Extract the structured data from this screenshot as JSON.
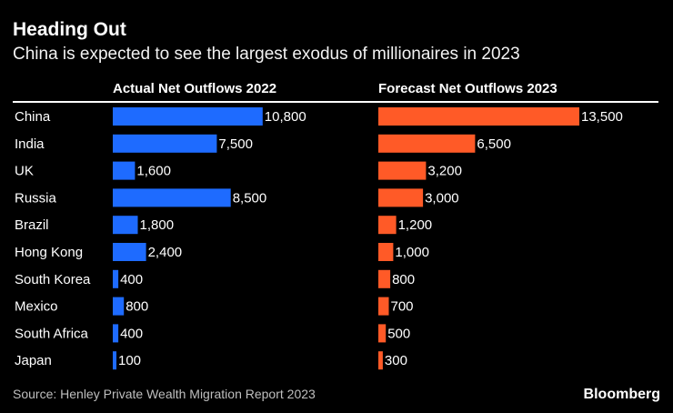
{
  "header": {
    "title": "Heading Out",
    "subtitle": "China is expected to see the largest exodus of millionaires in 2023"
  },
  "footer": {
    "source": "Source: Henley Private Wealth Migration Report 2023",
    "brand": "Bloomberg"
  },
  "colors": {
    "background": "#000000",
    "actual": "#1e6bff",
    "forecast": "#ff5a27",
    "text": "#ffffff"
  },
  "chart_data": {
    "type": "bar",
    "orientation": "horizontal",
    "title": "Heading Out",
    "subtitle": "China is expected to see the largest exodus of millionaires in 2023",
    "categories": [
      "China",
      "India",
      "UK",
      "Russia",
      "Brazil",
      "Hong Kong",
      "South Korea",
      "Mexico",
      "South Africa",
      "Japan"
    ],
    "series": [
      {
        "name": "Actual Net Outflows 2022",
        "values": [
          10800,
          7500,
          1600,
          8500,
          1800,
          2400,
          400,
          800,
          400,
          100
        ],
        "labels": [
          "10,800",
          "7,500",
          "1,600",
          "8,500",
          "1,800",
          "2,400",
          "400",
          "800",
          "400",
          "100"
        ]
      },
      {
        "name": "Forecast Net Outflows 2023",
        "values": [
          13500,
          6500,
          3200,
          3000,
          1200,
          1000,
          800,
          700,
          500,
          300
        ],
        "labels": [
          "13,500",
          "6,500",
          "3,200",
          "3,000",
          "1,200",
          "1,000",
          "800",
          "700",
          "500",
          "300"
        ]
      }
    ],
    "xlim": [
      0,
      13500
    ],
    "grid": false,
    "source": "Source: Henley Private Wealth Migration Report 2023"
  }
}
